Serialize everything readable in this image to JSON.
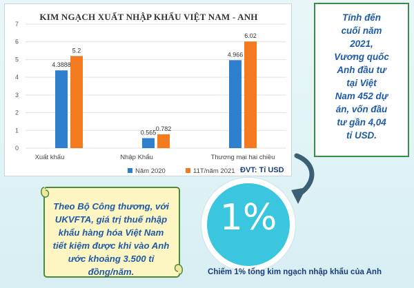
{
  "chart_data": {
    "type": "bar",
    "title": "KIM NGẠCH XUẤT NHẬP KHẨU VIỆT NAM - ANH",
    "categories": [
      "Xuất khẩu",
      "Nhập Khẩu",
      "Thương mại hai chiều"
    ],
    "series": [
      {
        "name": "Năm 2020",
        "values": [
          4.3888,
          0.565,
          4.966
        ],
        "labels": [
          "4.3888",
          "0.565",
          "4.966"
        ],
        "color": "#2f7fcf"
      },
      {
        "name": "11T/năm 2021",
        "values": [
          5.2,
          0.782,
          6.02
        ],
        "labels": [
          "5.2",
          "0.782",
          "6.02"
        ],
        "color": "#f47a1f"
      }
    ],
    "ylim": [
      0,
      7
    ],
    "yticks": [
      0,
      1,
      2,
      3,
      4,
      5,
      6,
      7
    ],
    "grid": true,
    "legend": "bottom"
  },
  "unit_label": "ĐVT: Tỉ USD",
  "info_box": {
    "lines": [
      "Tính đến",
      "cuối năm",
      "2021,",
      "Vương quốc",
      "Anh đầu tư",
      "tại Việt",
      "Nam 452 dự",
      "án, vốn đầu",
      "tư gần 4,04",
      "tỉ USD."
    ]
  },
  "scroll_note": {
    "lines": [
      "Theo Bộ Công thương, với",
      "UKVFTA, giá trị thuế nhập",
      "khẩu hàng hóa Việt Nam",
      "tiết kiệm được khi vào Anh",
      "ước khoảng 3.500 tỉ",
      "đồng/năm."
    ]
  },
  "percent": "1%",
  "caption": "Chiếm 1% tổng kim ngạch nhập khẩu của Anh",
  "colors": {
    "accent": "#39c6de",
    "text_blue": "#1e5aa6",
    "border_green": "#3a8b46",
    "scroll": "#fdf6c3"
  }
}
